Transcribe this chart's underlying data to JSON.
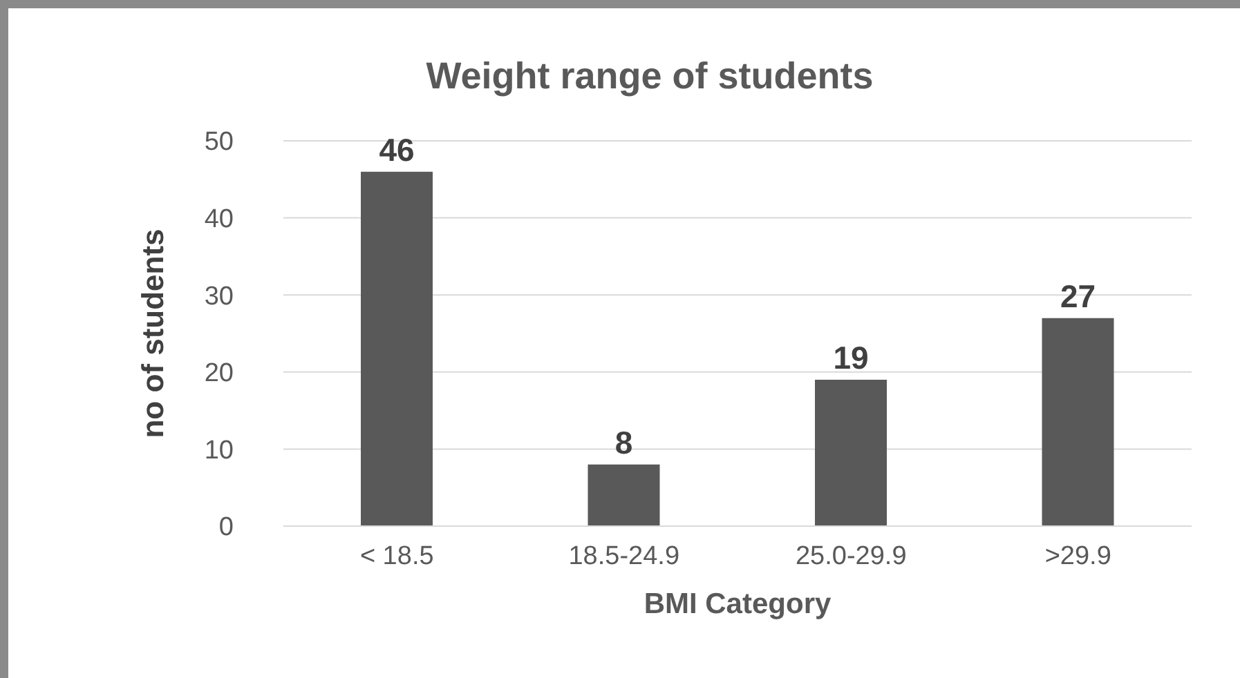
{
  "chart_data": {
    "type": "bar",
    "title": "Weight range of students",
    "xlabel": "BMI Category",
    "ylabel": "no of students",
    "categories": [
      "< 18.5",
      "18.5-24.9",
      "25.0-29.9",
      ">29.9"
    ],
    "values": [
      46,
      8,
      19,
      27
    ],
    "color": "#595959",
    "ylim": [
      0,
      50
    ],
    "yticks": [
      0,
      10,
      20,
      30,
      40,
      50
    ],
    "grid": "y",
    "data_labels": true
  }
}
